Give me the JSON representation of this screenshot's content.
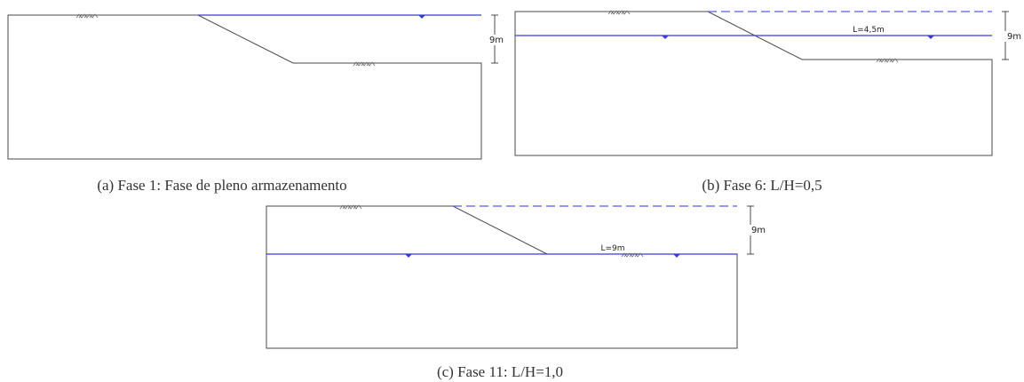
{
  "colors": {
    "outline": "#4a4a4a",
    "water": "#3b3bd6",
    "water_dashed": "#5a5ae6",
    "text": "#333333"
  },
  "panels": [
    {
      "id": "a",
      "caption": "(a) Fase 1: Fase de pleno armazenamento",
      "dimension_label": "9m",
      "length_label": ""
    },
    {
      "id": "b",
      "caption": "(b) Fase 6: L/H=0,5",
      "dimension_label": "9m",
      "length_label": "L=4,5m"
    },
    {
      "id": "c",
      "caption": "(c) Fase 11: L/H=1,0",
      "dimension_label": "9m",
      "length_label": "L=9m"
    }
  ]
}
